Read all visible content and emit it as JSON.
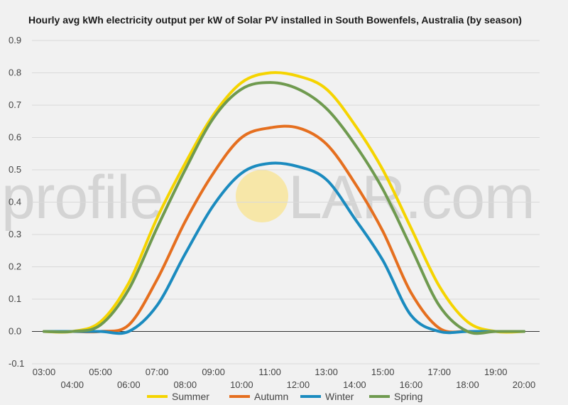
{
  "watermark": {
    "left": "profile",
    "right": "LAR.com",
    "sun_color": "#f7e7a8"
  },
  "chart_data": {
    "type": "line",
    "title": "Hourly avg kWh electricity output per kW of Solar PV installed in South Bowenfels, Australia (by season)",
    "xlabel": "",
    "ylabel": "",
    "ylim": [
      -0.1,
      0.9
    ],
    "yticks": [
      "-0.1",
      "0.0",
      "0.1",
      "0.2",
      "0.3",
      "0.4",
      "0.5",
      "0.6",
      "0.7",
      "0.8",
      "0.9"
    ],
    "ytick_values": [
      -0.1,
      0.0,
      0.1,
      0.2,
      0.3,
      0.4,
      0.5,
      0.6,
      0.7,
      0.8,
      0.9
    ],
    "x_hours": [
      3,
      4,
      5,
      6,
      7,
      8,
      9,
      10,
      11,
      12,
      13,
      14,
      15,
      16,
      17,
      18,
      19,
      20
    ],
    "x_labels": [
      "03:00",
      "04:00",
      "05:00",
      "06:00",
      "07:00",
      "08:00",
      "09:00",
      "10:00",
      "11:00",
      "12:00",
      "13:00",
      "14:00",
      "15:00",
      "16:00",
      "17:00",
      "18:00",
      "19:00",
      "20:00"
    ],
    "grid": true,
    "legend_position": "bottom",
    "series": [
      {
        "name": "Summer",
        "color": "#f5d400",
        "values": [
          0.0,
          0.0,
          0.03,
          0.15,
          0.35,
          0.52,
          0.67,
          0.77,
          0.8,
          0.79,
          0.75,
          0.64,
          0.5,
          0.32,
          0.14,
          0.03,
          0.0,
          0.0
        ]
      },
      {
        "name": "Autumn",
        "color": "#e56f1f",
        "values": [
          0.0,
          0.0,
          0.0,
          0.02,
          0.16,
          0.34,
          0.49,
          0.6,
          0.63,
          0.63,
          0.58,
          0.46,
          0.31,
          0.12,
          0.01,
          0.0,
          0.0,
          0.0
        ]
      },
      {
        "name": "Winter",
        "color": "#1b8bbf",
        "values": [
          0.0,
          0.0,
          0.0,
          0.0,
          0.08,
          0.24,
          0.39,
          0.49,
          0.52,
          0.51,
          0.47,
          0.35,
          0.22,
          0.05,
          0.0,
          0.0,
          0.0,
          0.0
        ]
      },
      {
        "name": "Spring",
        "color": "#6f9a4f",
        "values": [
          0.0,
          0.0,
          0.02,
          0.13,
          0.32,
          0.5,
          0.66,
          0.75,
          0.77,
          0.75,
          0.69,
          0.58,
          0.44,
          0.26,
          0.08,
          0.0,
          0.0,
          0.0
        ]
      }
    ]
  }
}
